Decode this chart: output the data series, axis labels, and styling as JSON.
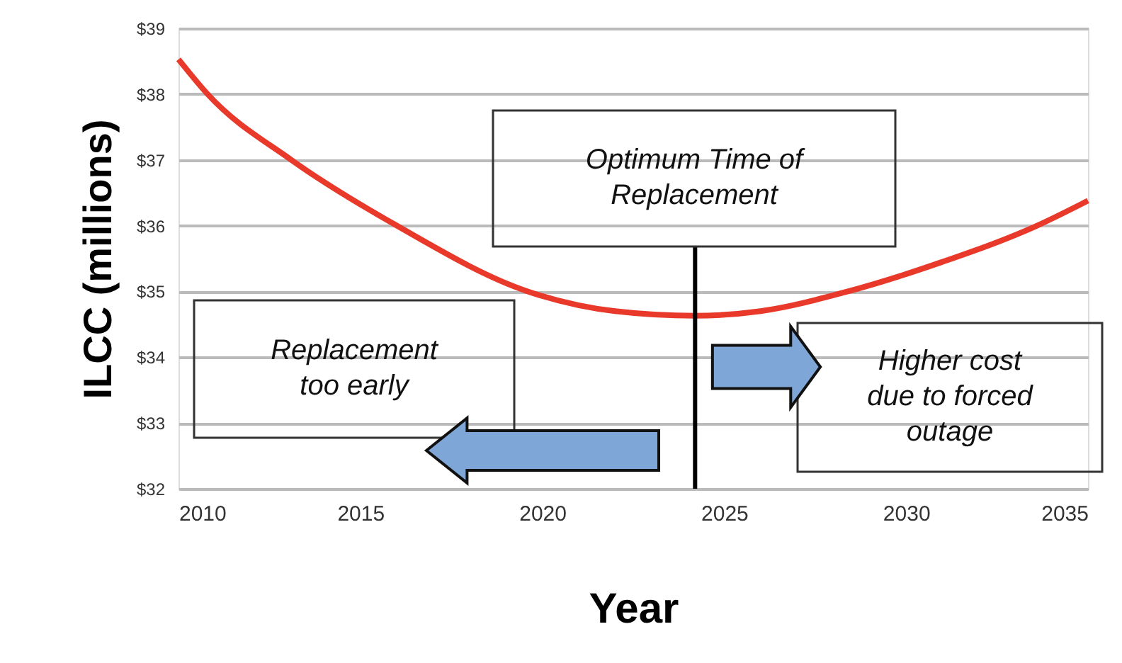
{
  "chart_data": {
    "type": "line",
    "xlabel": "Year",
    "ylabel": "ILCC (millions)",
    "x": [
      2010,
      2010.8,
      2013.1,
      2016,
      2019.6,
      2022,
      2024.2,
      2026,
      2028.4,
      2031,
      2033.6,
      2035
    ],
    "series": [
      {
        "color": "#e8392b",
        "values": [
          38.53,
          38,
          37,
          36,
          35,
          34.7,
          34.63,
          34.7,
          35,
          35.45,
          36,
          36.38
        ]
      }
    ],
    "xlim": [
      2010,
      2035
    ],
    "xticks": [
      2010,
      2015,
      2020,
      2025,
      2030,
      2035
    ],
    "ylim": [
      32,
      39
    ],
    "yticks": [
      {
        "value": 32,
        "label": "$32"
      },
      {
        "value": 33,
        "label": "$33"
      },
      {
        "value": 34,
        "label": "$34"
      },
      {
        "value": 35,
        "label": "$35"
      },
      {
        "value": 36,
        "label": "$36"
      },
      {
        "value": 37,
        "label": "$37"
      },
      {
        "value": 38,
        "label": "$38"
      },
      {
        "value": 39,
        "label": "$39"
      }
    ],
    "grid": "y",
    "marker": "none",
    "line_style": "solid",
    "legend": false,
    "ref_lines": [
      {
        "axis": "x",
        "value": 2024.2,
        "color": "#000000"
      }
    ],
    "annotations": [
      "Optimum Time of\nReplacement",
      "Replacement\ntoo early",
      "Higher cost\ndue to forced\noutage"
    ]
  }
}
